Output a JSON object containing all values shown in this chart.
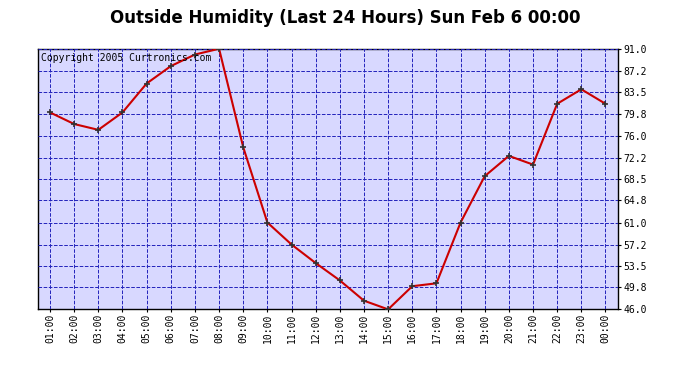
{
  "title": "Outside Humidity (Last 24 Hours) Sun Feb 6 00:00",
  "copyright": "Copyright 2005 Curtronics.com",
  "x_labels": [
    "01:00",
    "02:00",
    "03:00",
    "04:00",
    "05:00",
    "06:00",
    "07:00",
    "08:00",
    "09:00",
    "10:00",
    "11:00",
    "12:00",
    "13:00",
    "14:00",
    "15:00",
    "16:00",
    "17:00",
    "18:00",
    "19:00",
    "20:00",
    "21:00",
    "22:00",
    "23:00",
    "00:00"
  ],
  "x_values": [
    1,
    2,
    3,
    4,
    5,
    6,
    7,
    8,
    9,
    10,
    11,
    12,
    13,
    14,
    15,
    16,
    17,
    18,
    19,
    20,
    21,
    22,
    23,
    24
  ],
  "y_values": [
    80.0,
    78.0,
    77.0,
    80.0,
    85.0,
    88.0,
    90.0,
    91.0,
    74.0,
    61.0,
    57.2,
    54.0,
    51.0,
    47.5,
    46.0,
    50.0,
    50.5,
    61.0,
    69.0,
    72.5,
    71.0,
    81.5,
    84.0,
    81.5
  ],
  "y_ticks": [
    46.0,
    49.8,
    53.5,
    57.2,
    61.0,
    64.8,
    68.5,
    72.2,
    76.0,
    79.8,
    83.5,
    87.2,
    91.0
  ],
  "ylim": [
    46.0,
    91.0
  ],
  "xlim": [
    0.5,
    24.5
  ],
  "line_color": "#cc0000",
  "marker_color": "#333333",
  "plot_bg_color": "#d8d8ff",
  "fig_bg_color": "#ffffff",
  "grid_color": "#2222bb",
  "title_fontsize": 12,
  "copyright_fontsize": 7,
  "tick_fontsize": 7,
  "marker_size": 5,
  "line_width": 1.5
}
